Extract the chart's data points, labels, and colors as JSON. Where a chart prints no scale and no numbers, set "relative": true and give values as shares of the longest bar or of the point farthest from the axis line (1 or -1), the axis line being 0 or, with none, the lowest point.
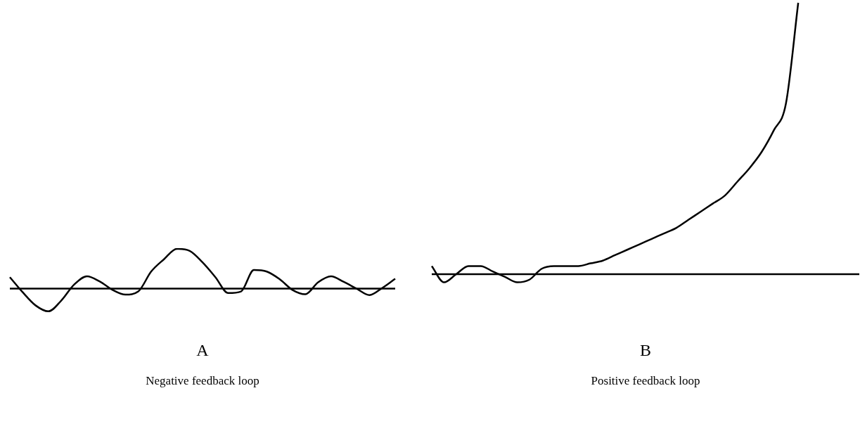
{
  "chart_data": [
    {
      "type": "line",
      "relative": true,
      "xlabel": "A",
      "annotations": [
        "Negative feedback loop"
      ],
      "color": "#000000",
      "marker": "none",
      "legend": false,
      "grid": false,
      "tick_labels": false,
      "categories": [
        null,
        null,
        null,
        null,
        null,
        null,
        null,
        null,
        null,
        null,
        null,
        null,
        null,
        null,
        null,
        null,
        null,
        null,
        null,
        null,
        null,
        null,
        null,
        null,
        null,
        null,
        null,
        null,
        null,
        null,
        null
      ],
      "values": [
        0.29,
        -0.09,
        -0.42,
        -0.57,
        -0.3,
        0.1,
        0.31,
        0.18,
        -0.03,
        -0.15,
        -0.07,
        0.43,
        0.74,
        1,
        0.95,
        0.66,
        0.29,
        -0.11,
        -0.07,
        0.47,
        0.43,
        0.24,
        -0.03,
        -0.14,
        0.16,
        0.31,
        0.17,
        0,
        -0.16,
        0.02,
        0.25
      ]
    },
    {
      "type": "line",
      "relative": true,
      "xlabel": "B",
      "annotations": [
        "Positive feedback loop"
      ],
      "color": "#000000",
      "marker": "none",
      "legend": false,
      "grid": false,
      "tick_labels": false,
      "categories": [
        null,
        null,
        null,
        null,
        null,
        null,
        null,
        null,
        null,
        null,
        null,
        null,
        null,
        null,
        null,
        null,
        null,
        null,
        null,
        null,
        null,
        null,
        null,
        null,
        null,
        null,
        null,
        null,
        null,
        null,
        null,
        null,
        null,
        null,
        null,
        null
      ],
      "values": [
        0.03,
        -0.03,
        0,
        0.03,
        0.03,
        0.01,
        -0.01,
        -0.03,
        -0.02,
        0.02,
        0.03,
        0.03,
        0.03,
        0.04,
        0.05,
        0.07,
        0.09,
        0.11,
        0.13,
        0.15,
        0.17,
        0.2,
        0.23,
        0.26,
        0.29,
        0.34,
        0.39,
        0.45,
        0.53,
        0.63,
        1,
        null,
        null,
        null,
        null,
        null
      ]
    }
  ]
}
